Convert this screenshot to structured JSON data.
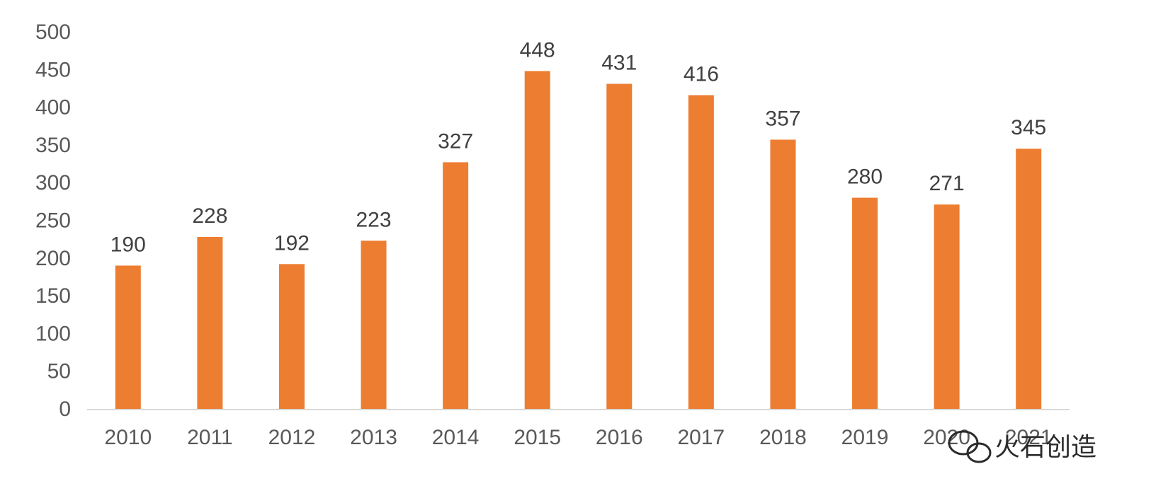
{
  "chart_data": {
    "type": "bar",
    "title": "",
    "xlabel": "",
    "ylabel": "",
    "categories": [
      "2010",
      "2011",
      "2012",
      "2013",
      "2014",
      "2015",
      "2016",
      "2017",
      "2018",
      "2019",
      "2020",
      "2021"
    ],
    "values": [
      190,
      228,
      192,
      223,
      327,
      448,
      431,
      416,
      357,
      280,
      271,
      345
    ],
    "data_labels": [
      "190",
      "228",
      "192",
      "223",
      "327",
      "448",
      "431",
      "416",
      "357",
      "280",
      "271",
      "345"
    ],
    "ylim": [
      0,
      500
    ],
    "yticks": [
      "0",
      "50",
      "100",
      "150",
      "200",
      "250",
      "300",
      "350",
      "400",
      "450",
      "500"
    ],
    "grid": false,
    "legend": "none",
    "bar_color": "#ED7D31"
  },
  "watermark": {
    "text": "火石创造",
    "icon": "wechat-icon"
  }
}
